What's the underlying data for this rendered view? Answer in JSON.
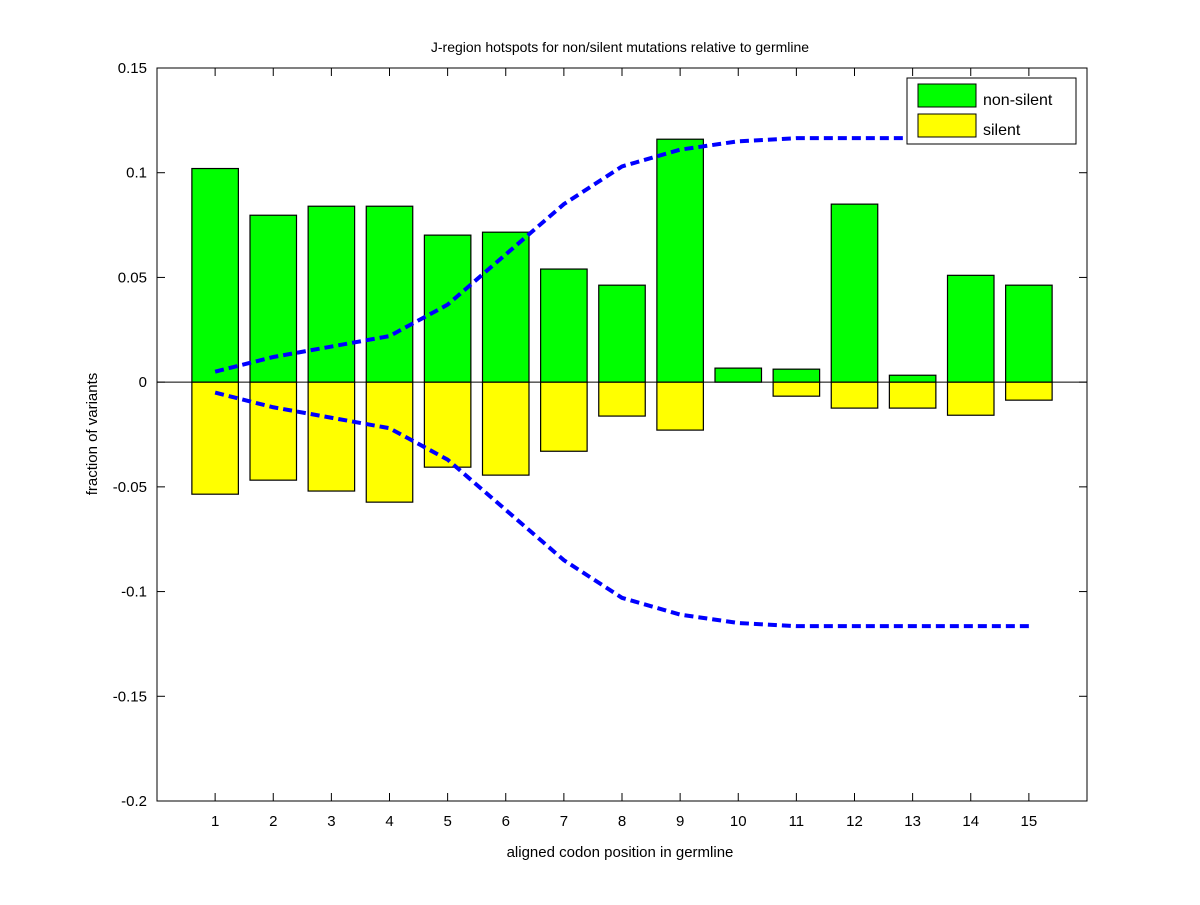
{
  "chart_data": {
    "type": "bar",
    "title": "J-region hotspots for non/silent mutations relative to germline",
    "xlabel": "aligned codon position in germline",
    "ylabel": "fraction of variants",
    "xlim": [
      0,
      16
    ],
    "ylim": [
      -0.2,
      0.15
    ],
    "x": [
      1,
      2,
      3,
      4,
      5,
      6,
      7,
      8,
      9,
      10,
      11,
      12,
      13,
      14,
      15
    ],
    "xticks": [
      "1",
      "2",
      "3",
      "4",
      "5",
      "6",
      "7",
      "8",
      "9",
      "10",
      "11",
      "12",
      "13",
      "14",
      "15"
    ],
    "yticks": [
      0.15,
      0.1,
      0.05,
      0,
      -0.05,
      -0.1,
      -0.15,
      -0.2
    ],
    "ytick_labels": [
      "0.15",
      "0.1",
      "0.05",
      "0",
      "-0.05",
      "-0.1",
      "-0.15",
      "-0.2"
    ],
    "grid": false,
    "legend_position": "top-right",
    "series": [
      {
        "name": "non-silent",
        "color": "#00ff00",
        "values": [
          0.102,
          0.0797,
          0.084,
          0.084,
          0.0702,
          0.0716,
          0.054,
          0.0463,
          0.116,
          0.0067,
          0.0062,
          0.085,
          0.0033,
          0.051,
          0.0463
        ]
      },
      {
        "name": "silent",
        "color": "#ffff00",
        "values": [
          -0.0535,
          -0.0468,
          -0.052,
          -0.0573,
          -0.0406,
          -0.0444,
          -0.033,
          -0.0162,
          -0.0229,
          0,
          -0.0067,
          -0.0124,
          -0.0124,
          -0.0158,
          -0.0086
        ]
      }
    ],
    "threshold_lines": {
      "color": "#0000ff",
      "style": "dashed",
      "upper": [
        0.005,
        0.012,
        0.017,
        0.022,
        0.037,
        0.061,
        0.085,
        0.103,
        0.111,
        0.115,
        0.1165,
        0.1165,
        0.1165,
        0.1165,
        0.1165
      ],
      "lower": [
        -0.005,
        -0.012,
        -0.017,
        -0.022,
        -0.037,
        -0.061,
        -0.085,
        -0.103,
        -0.111,
        -0.115,
        -0.1165,
        -0.1165,
        -0.1165,
        -0.1165,
        -0.1165
      ]
    }
  }
}
